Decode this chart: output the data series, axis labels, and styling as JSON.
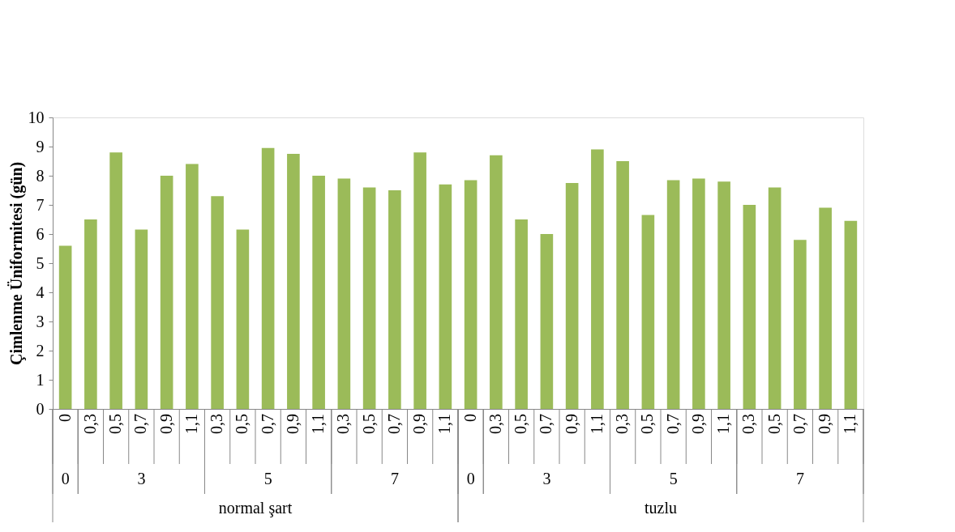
{
  "chart_data": {
    "type": "bar",
    "ylabel": "Çimlenme Üniformitesi  (gün)",
    "categories": [
      "0",
      "0,3",
      "0,5",
      "0,7",
      "0,9",
      "1,1",
      "0,3",
      "0,5",
      "0,7",
      "0,9",
      "1,1",
      "0,3",
      "0,5",
      "0,7",
      "0,9",
      "1,1",
      "0",
      "0,3",
      "0,5",
      "0,7",
      "0,9",
      "1,1",
      "0,3",
      "0,5",
      "0,7",
      "0,9",
      "1,1",
      "0,3",
      "0,5",
      "0,7",
      "0,9",
      "1,1"
    ],
    "values": [
      5.6,
      6.5,
      8.8,
      6.15,
      8.0,
      8.4,
      7.3,
      6.15,
      8.95,
      8.75,
      8.0,
      7.9,
      7.6,
      7.5,
      8.8,
      7.7,
      7.85,
      8.7,
      6.5,
      6.0,
      7.75,
      8.9,
      8.5,
      6.65,
      7.85,
      7.9,
      7.8,
      7.0,
      7.6,
      5.8,
      6.9,
      6.45
    ],
    "color": "#9bbb59",
    "ylim": [
      0,
      10
    ],
    "yticks": [
      0,
      1,
      2,
      3,
      4,
      5,
      6,
      7,
      8,
      9,
      10
    ],
    "grid": false,
    "annotations": [
      "0",
      "3",
      "5",
      "7",
      "0",
      "3",
      "5",
      "7",
      "normal şart",
      "tuzlu"
    ]
  }
}
